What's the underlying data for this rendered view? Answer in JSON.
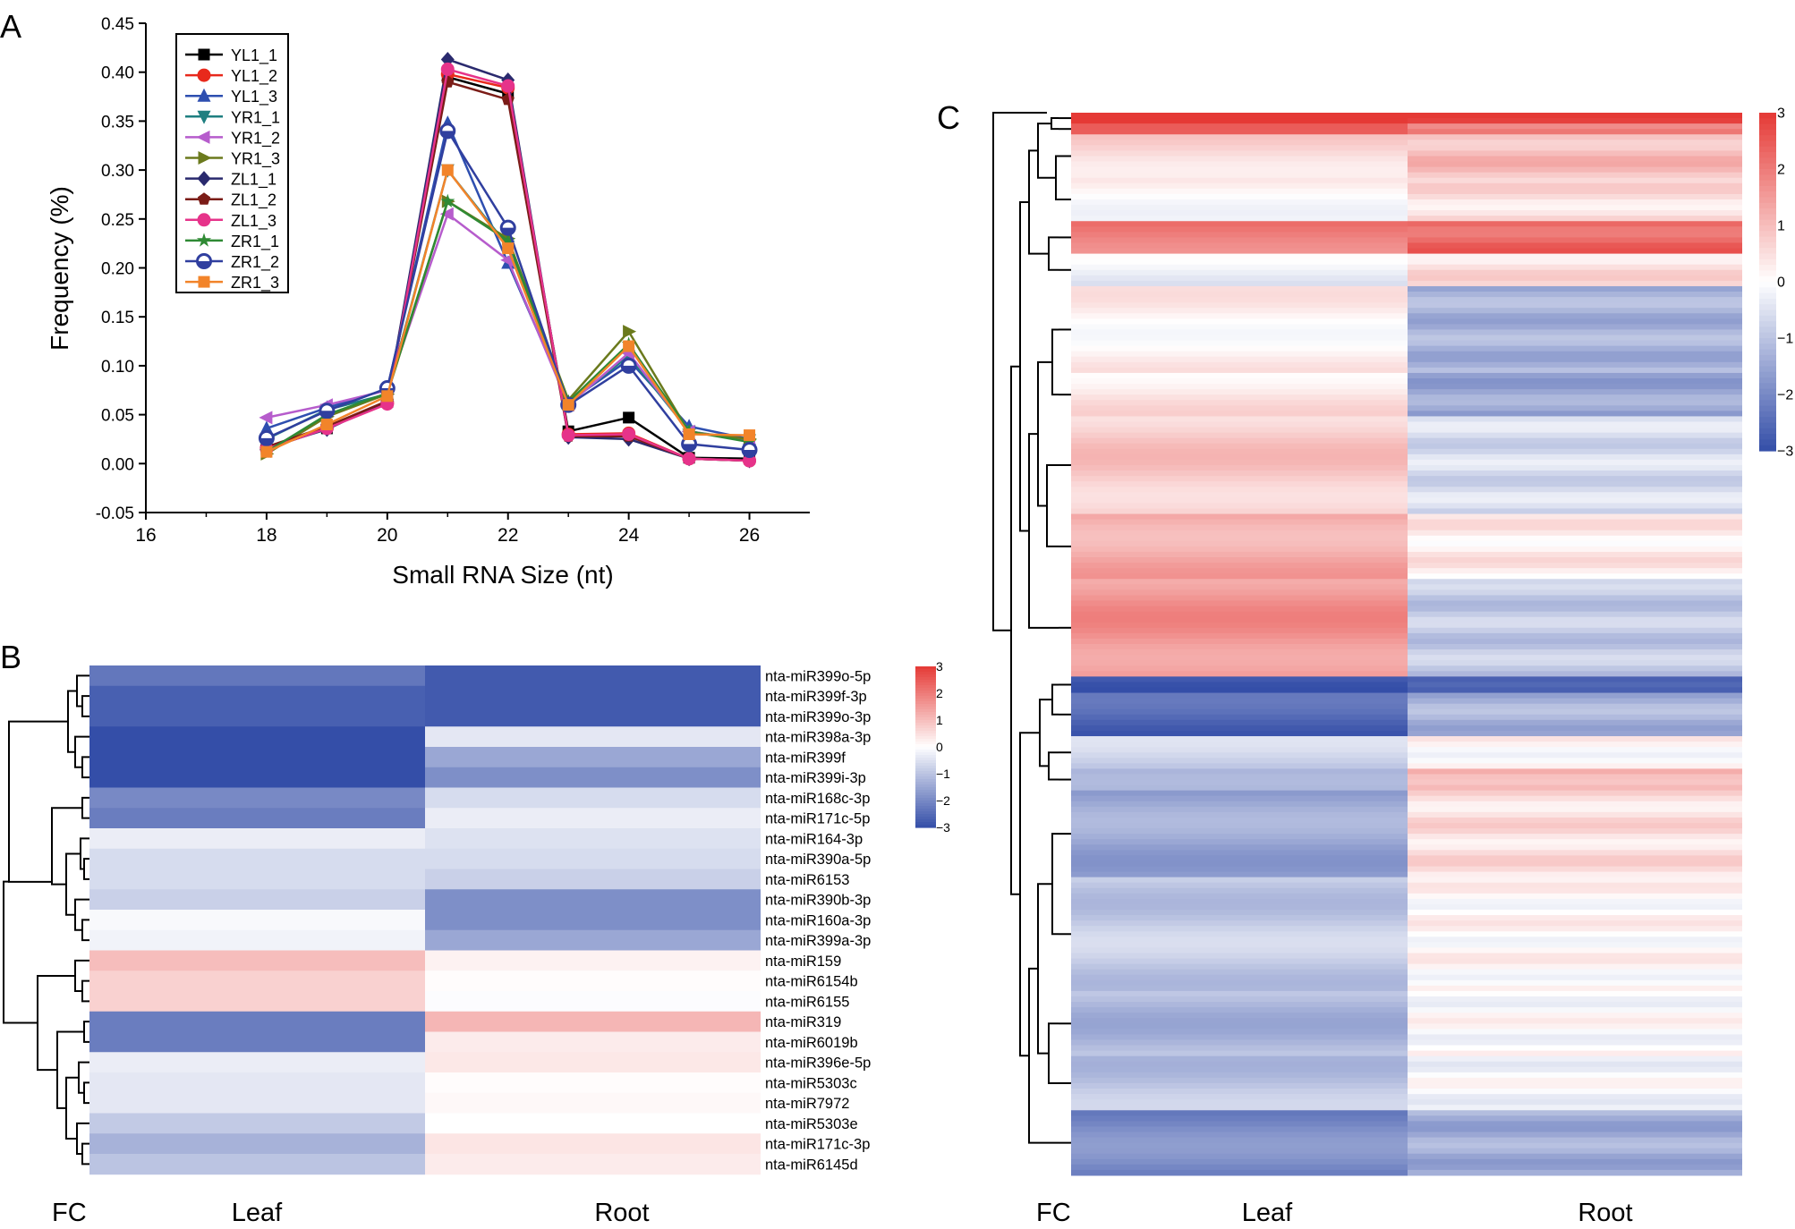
{
  "chart_data": [
    {
      "panel": "A",
      "type": "line",
      "title": "",
      "xlabel": "Small RNA Size (nt)",
      "ylabel": "Frequency (%)",
      "xlim": [
        16,
        27
      ],
      "ylim": [
        -0.05,
        0.45
      ],
      "xticks": [
        16,
        18,
        20,
        22,
        24,
        26
      ],
      "yticks": [
        "-0.05",
        "0.00",
        "0.05",
        "0.10",
        "0.15",
        "0.20",
        "0.25",
        "0.30",
        "0.35",
        "0.40",
        "0.45"
      ],
      "legend_position": "top-left",
      "x": [
        18,
        19,
        20,
        21,
        22,
        23,
        24,
        25,
        26
      ],
      "series": [
        {
          "name": "YL1_1",
          "color": "#000000",
          "marker": "square",
          "values": [
            0.015,
            0.036,
            0.063,
            0.395,
            0.378,
            0.033,
            0.047,
            0.006,
            0.005
          ]
        },
        {
          "name": "YL1_2",
          "color": "#e8291c",
          "marker": "circle",
          "values": [
            0.016,
            0.037,
            0.062,
            0.398,
            0.384,
            0.03,
            0.031,
            0.005,
            0.003
          ]
        },
        {
          "name": "YL1_3",
          "color": "#2e4fb0",
          "marker": "triangle-up",
          "values": [
            0.036,
            0.057,
            0.076,
            0.348,
            0.205,
            0.063,
            0.106,
            0.038,
            0.025
          ]
        },
        {
          "name": "YR1_1",
          "color": "#1f7f80",
          "marker": "triangle-down",
          "values": [
            0.025,
            0.055,
            0.071,
            0.3,
            0.222,
            0.062,
            0.11,
            0.033,
            0.024
          ]
        },
        {
          "name": "YR1_2",
          "color": "#b65ccc",
          "marker": "triangle-left",
          "values": [
            0.047,
            0.06,
            0.075,
            0.255,
            0.208,
            0.06,
            0.113,
            0.033,
            0.023
          ]
        },
        {
          "name": "YR1_3",
          "color": "#6b7a1d",
          "marker": "triangle-right",
          "values": [
            0.01,
            0.048,
            0.071,
            0.268,
            0.23,
            0.065,
            0.135,
            0.032,
            0.025
          ]
        },
        {
          "name": "ZL1_1",
          "color": "#2a2a6e",
          "marker": "diamond",
          "values": [
            0.016,
            0.035,
            0.064,
            0.413,
            0.392,
            0.027,
            0.025,
            0.005,
            0.003
          ]
        },
        {
          "name": "ZL1_2",
          "color": "#7b1c17",
          "marker": "pentagon",
          "values": [
            0.017,
            0.038,
            0.064,
            0.39,
            0.372,
            0.028,
            0.028,
            0.005,
            0.003
          ]
        },
        {
          "name": "ZL1_3",
          "color": "#e6338a",
          "marker": "circle",
          "values": [
            0.015,
            0.036,
            0.061,
            0.403,
            0.386,
            0.029,
            0.03,
            0.005,
            0.003
          ]
        },
        {
          "name": "ZR1_1",
          "color": "#2f8a34",
          "marker": "star",
          "values": [
            0.012,
            0.05,
            0.072,
            0.268,
            0.228,
            0.063,
            0.122,
            0.033,
            0.022
          ]
        },
        {
          "name": "ZR1_2",
          "color": "#303f9f",
          "marker": "circle-half",
          "values": [
            0.026,
            0.054,
            0.077,
            0.34,
            0.241,
            0.06,
            0.1,
            0.02,
            0.014
          ]
        },
        {
          "name": "ZR1_3",
          "color": "#f2842a",
          "marker": "square",
          "values": [
            0.012,
            0.04,
            0.069,
            0.3,
            0.22,
            0.06,
            0.12,
            0.03,
            0.029
          ]
        }
      ]
    },
    {
      "panel": "B",
      "type": "heatmap",
      "columns": [
        "Leaf",
        "Root"
      ],
      "corner_label": "FC",
      "colorbar_ticks": [
        "3",
        "2",
        "1",
        "0",
        "−1",
        "−2",
        "−3"
      ],
      "color_range": [
        -3,
        3
      ],
      "rows": [
        {
          "label": "nta-miR399o-5p",
          "values": [
            -2.3,
            -2.8
          ]
        },
        {
          "label": "nta-miR399f-3p",
          "values": [
            -2.7,
            -2.8
          ]
        },
        {
          "label": "nta-miR399o-3p",
          "values": [
            -2.7,
            -2.8
          ]
        },
        {
          "label": "nta-miR398a-3p",
          "values": [
            -3.0,
            -0.4
          ]
        },
        {
          "label": "nta-miR399f",
          "values": [
            -3.0,
            -1.5
          ]
        },
        {
          "label": "nta-miR399i-3p",
          "values": [
            -3.0,
            -1.9
          ]
        },
        {
          "label": "nta-miR168c-3p",
          "values": [
            -2.0,
            -0.6
          ]
        },
        {
          "label": "nta-miR171c-5p",
          "values": [
            -2.2,
            -0.3
          ]
        },
        {
          "label": "nta-miR164-3p",
          "values": [
            -0.3,
            -0.5
          ]
        },
        {
          "label": "nta-miR390a-5p",
          "values": [
            -0.6,
            -0.6
          ]
        },
        {
          "label": "nta-miR6153",
          "values": [
            -0.6,
            -0.8
          ]
        },
        {
          "label": "nta-miR390b-3p",
          "values": [
            -0.8,
            -1.9
          ]
        },
        {
          "label": "nta-miR160a-3p",
          "values": [
            -0.1,
            -1.9
          ]
        },
        {
          "label": "nta-miR399a-3p",
          "values": [
            -0.2,
            -1.5
          ]
        },
        {
          "label": "nta-miR159",
          "values": [
            1.0,
            0.2
          ]
        },
        {
          "label": "nta-miR6154b",
          "values": [
            0.7,
            0.05
          ]
        },
        {
          "label": "nta-miR6155",
          "values": [
            0.7,
            -0.05
          ]
        },
        {
          "label": "nta-miR319",
          "values": [
            -2.2,
            1.1
          ]
        },
        {
          "label": "nta-miR6019b",
          "values": [
            -2.2,
            0.3
          ]
        },
        {
          "label": "nta-miR396e-5p",
          "values": [
            -0.3,
            0.35
          ]
        },
        {
          "label": "nta-miR5303c",
          "values": [
            -0.4,
            0.05
          ]
        },
        {
          "label": "nta-miR7972",
          "values": [
            -0.4,
            0.1
          ]
        },
        {
          "label": "nta-miR5303e",
          "values": [
            -0.9,
            0.0
          ]
        },
        {
          "label": "nta-miR171c-3p",
          "values": [
            -1.3,
            0.4
          ]
        },
        {
          "label": "nta-miR6145d",
          "values": [
            -1.0,
            0.3
          ]
        }
      ]
    },
    {
      "panel": "C",
      "type": "heatmap",
      "columns": [
        "Leaf",
        "Root"
      ],
      "corner_label": "FC",
      "colorbar_ticks": [
        "3",
        "2",
        "1",
        "0",
        "−1",
        "−2",
        "−3"
      ],
      "color_range": [
        -3,
        3
      ],
      "row_count": 196,
      "row_groups": [
        {
          "rows": 2,
          "values": [
            3.0,
            3.0
          ]
        },
        {
          "rows": 2,
          "values": [
            2.8,
            1.8
          ]
        },
        {
          "rows": 8,
          "values": [
            0.6,
            1.0
          ]
        },
        {
          "rows": 8,
          "values": [
            0.1,
            0.5
          ]
        },
        {
          "rows": 6,
          "values": [
            2.0,
            2.3
          ]
        },
        {
          "rows": 6,
          "values": [
            -0.3,
            0.5
          ]
        },
        {
          "rows": 16,
          "values": [
            0.2,
            -1.3
          ]
        },
        {
          "rows": 8,
          "values": [
            0.4,
            -1.5
          ]
        },
        {
          "rows": 18,
          "values": [
            0.8,
            -0.6
          ]
        },
        {
          "rows": 12,
          "values": [
            1.3,
            0.3
          ]
        },
        {
          "rows": 18,
          "values": [
            1.6,
            -0.9
          ]
        },
        {
          "rows": 3,
          "values": [
            -2.8,
            -2.9
          ]
        },
        {
          "rows": 8,
          "values": [
            -2.6,
            -1.3
          ]
        },
        {
          "rows": 6,
          "values": [
            -0.8,
            0.1
          ]
        },
        {
          "rows": 4,
          "values": [
            -1.5,
            1.2
          ]
        },
        {
          "rows": 16,
          "values": [
            -1.5,
            0.5
          ]
        },
        {
          "rows": 21,
          "values": [
            -0.9,
            0.1
          ]
        },
        {
          "rows": 12,
          "values": [
            -1.2,
            0.0
          ]
        },
        {
          "rows": 10,
          "values": [
            -1.0,
            -0.1
          ]
        },
        {
          "rows": 12,
          "values": [
            -2.0,
            -1.4
          ]
        }
      ]
    }
  ],
  "panel_labels": {
    "a": "A",
    "b": "B",
    "c": "C"
  }
}
